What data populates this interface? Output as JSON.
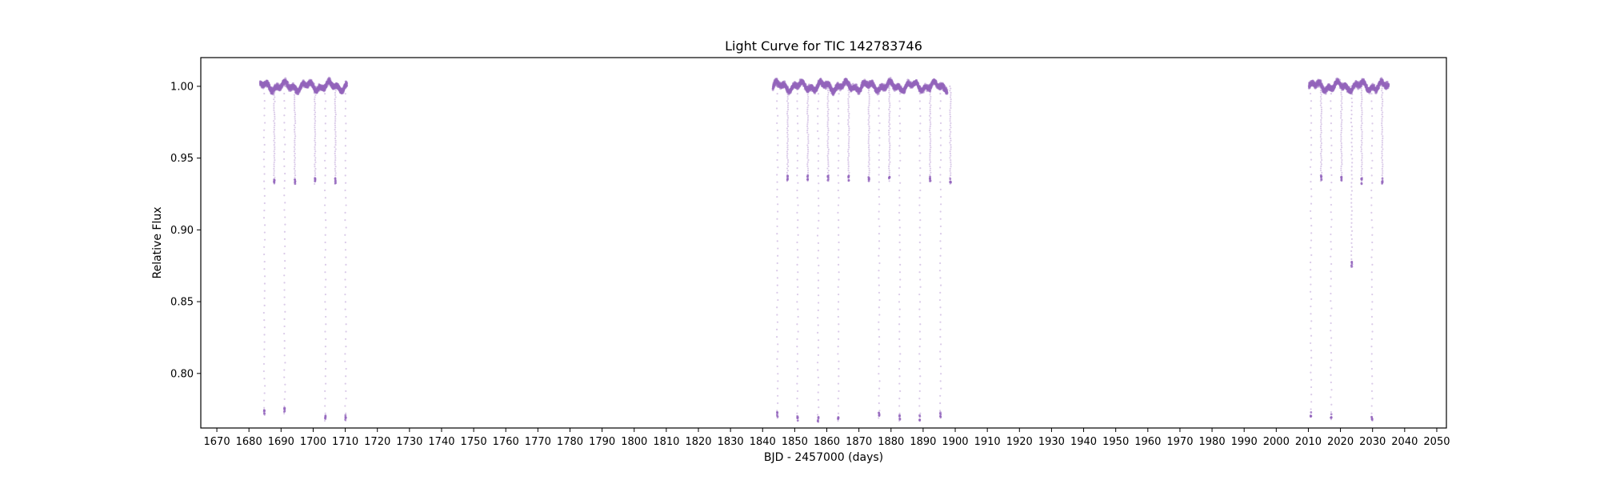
{
  "chart_data": {
    "type": "scatter",
    "title": "Light Curve for TIC 142783746",
    "xlabel": "BJD - 2457000 (days)",
    "ylabel": "Relative Flux",
    "xlim": [
      1665,
      2053
    ],
    "ylim": [
      0.762,
      1.02
    ],
    "xticks": [
      1670,
      1680,
      1690,
      1700,
      1710,
      1720,
      1730,
      1740,
      1750,
      1760,
      1770,
      1780,
      1790,
      1800,
      1810,
      1820,
      1830,
      1840,
      1850,
      1860,
      1870,
      1880,
      1890,
      1900,
      1910,
      1920,
      1930,
      1940,
      1950,
      1960,
      1970,
      1980,
      1990,
      2000,
      2010,
      2020,
      2030,
      2040,
      2050
    ],
    "yticks": [
      0.8,
      0.85,
      0.9,
      0.95,
      1.0
    ],
    "ytick_labels": [
      "0.80",
      "0.85",
      "0.90",
      "0.95",
      "1.00"
    ],
    "grid": false,
    "marker_color": "#9467bd",
    "observing_segments": [
      {
        "start": 1683.5,
        "end": 1710.5
      },
      {
        "start": 1843.2,
        "end": 1897.5
      },
      {
        "start": 2010.2,
        "end": 2035.0
      }
    ],
    "baseline_flux": 1.0,
    "transits": [
      {
        "time": 1684.8,
        "depth_min": 0.771
      },
      {
        "time": 1687.9,
        "depth_min": 0.932
      },
      {
        "time": 1691.1,
        "depth_min": 0.772
      },
      {
        "time": 1694.3,
        "depth_min": 0.932
      },
      {
        "time": 1700.6,
        "depth_min": 0.932
      },
      {
        "time": 1703.8,
        "depth_min": 0.767
      },
      {
        "time": 1706.9,
        "depth_min": 0.932
      },
      {
        "time": 1710.1,
        "depth_min": 0.767
      },
      {
        "time": 1844.6,
        "depth_min": 0.769
      },
      {
        "time": 1847.8,
        "depth_min": 0.934
      },
      {
        "time": 1850.9,
        "depth_min": 0.767
      },
      {
        "time": 1854.1,
        "depth_min": 0.934
      },
      {
        "time": 1857.3,
        "depth_min": 0.766
      },
      {
        "time": 1860.4,
        "depth_min": 0.934
      },
      {
        "time": 1863.6,
        "depth_min": 0.767
      },
      {
        "time": 1866.8,
        "depth_min": 0.934
      },
      {
        "time": 1873.1,
        "depth_min": 0.934
      },
      {
        "time": 1876.3,
        "depth_min": 0.769
      },
      {
        "time": 1879.5,
        "depth_min": 0.934
      },
      {
        "time": 1882.7,
        "depth_min": 0.767
      },
      {
        "time": 1889.0,
        "depth_min": 0.767
      },
      {
        "time": 1892.2,
        "depth_min": 0.934
      },
      {
        "time": 1895.4,
        "depth_min": 0.769
      },
      {
        "time": 1898.5,
        "depth_min": 0.932
      },
      {
        "time": 2010.8,
        "depth_min": 0.77
      },
      {
        "time": 2014.0,
        "depth_min": 0.934
      },
      {
        "time": 2017.1,
        "depth_min": 0.768
      },
      {
        "time": 2020.3,
        "depth_min": 0.934
      },
      {
        "time": 2023.5,
        "depth_min": 0.874
      },
      {
        "time": 2026.6,
        "depth_min": 0.932
      },
      {
        "time": 2029.8,
        "depth_min": 0.767
      },
      {
        "time": 2033.0,
        "depth_min": 0.932
      }
    ]
  }
}
